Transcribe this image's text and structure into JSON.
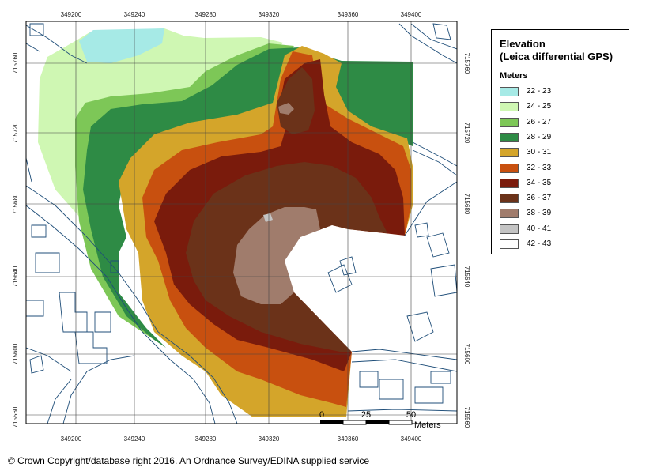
{
  "legend": {
    "title_line1": "Elevation",
    "title_line2": "(Leica differential GPS)",
    "units": "Meters",
    "classes": [
      {
        "label": "22 - 23",
        "color": "#a6eae6"
      },
      {
        "label": "24 - 25",
        "color": "#cff7b3"
      },
      {
        "label": "26 - 27",
        "color": "#7dc757"
      },
      {
        "label": "28 - 29",
        "color": "#2e8b45"
      },
      {
        "label": "30 - 31",
        "color": "#d4a52a"
      },
      {
        "label": "32 - 33",
        "color": "#c8500f"
      },
      {
        "label": "34 - 35",
        "color": "#7a1b0c"
      },
      {
        "label": "36 - 37",
        "color": "#6b3219"
      },
      {
        "label": "38 - 39",
        "color": "#a07c6c"
      },
      {
        "label": "40 - 41",
        "color": "#c4c4c4"
      },
      {
        "label": "42 - 43",
        "color": "#ffffff"
      }
    ]
  },
  "axes": {
    "x_ticks": [
      "349200",
      "349240",
      "349280",
      "349320",
      "349360",
      "349400"
    ],
    "y_ticks": [
      "715760",
      "715720",
      "715680",
      "715640",
      "715600",
      "715560"
    ]
  },
  "scale_bar": {
    "labels": [
      "0",
      "25",
      "50"
    ],
    "units": "Meters"
  },
  "credit": "© Crown Copyright/database right 2016. An Ordnance Survey/EDINA supplied service"
}
